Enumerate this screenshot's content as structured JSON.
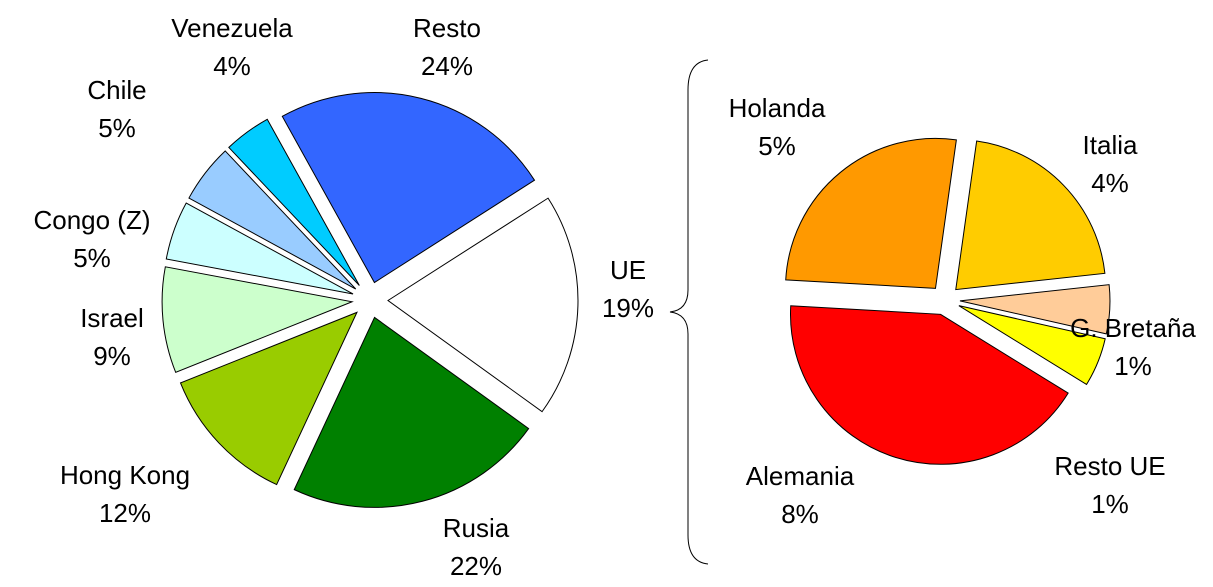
{
  "chart_data": [
    {
      "type": "pie",
      "categories": [
        "Resto",
        "UE",
        "Rusia",
        "Hong Kong",
        "Israel",
        "Congo (Z)",
        "Chile",
        "Venezuela"
      ],
      "values": [
        24,
        19,
        22,
        12,
        9,
        5,
        5,
        4
      ],
      "value_labels": [
        "24%",
        "19%",
        "22%",
        "12%",
        "9%",
        "5%",
        "5%",
        "4%"
      ],
      "colors": [
        "#3366ff",
        "#ffffff",
        "#008000",
        "#99cc00",
        "#ccffcc",
        "#ccffff",
        "#99ccff",
        "#00ccff"
      ]
    },
    {
      "type": "pie",
      "categories": [
        "Italia",
        "G. Bretaña",
        "Resto UE",
        "Alemania",
        "Holanda"
      ],
      "values": [
        4,
        1,
        1,
        8,
        5
      ],
      "value_labels": [
        "4%",
        "1%",
        "1%",
        "8%",
        "5%"
      ],
      "colors": [
        "#ffcc00",
        "#ffcc99",
        "#ffff00",
        "#ff0000",
        "#ff9900"
      ]
    }
  ]
}
